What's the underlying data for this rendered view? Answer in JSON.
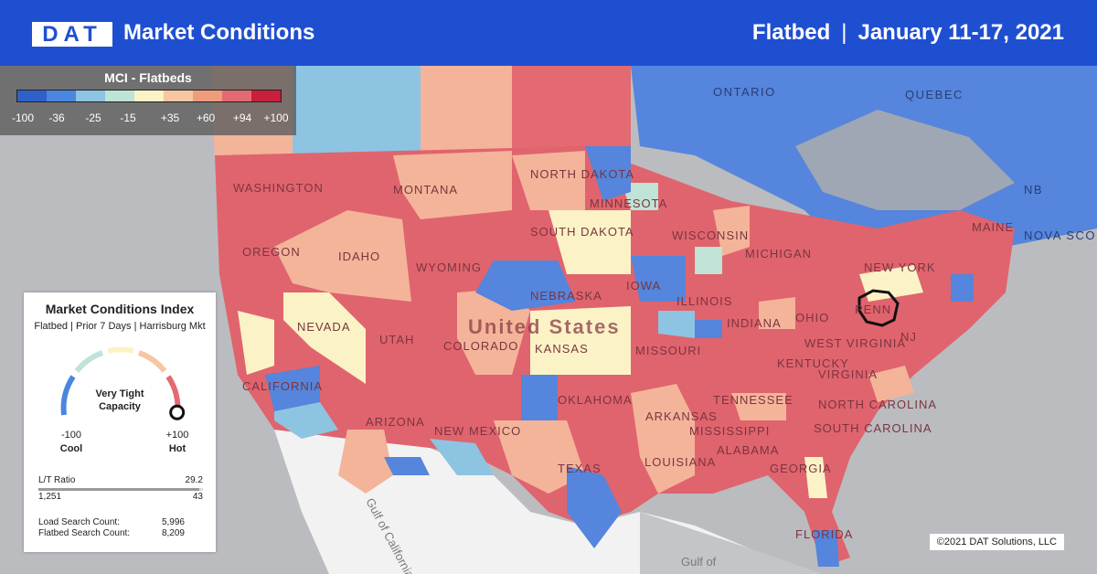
{
  "header": {
    "logo": "DAT",
    "title": "Market Conditions",
    "segment": "Flatbed",
    "separator": "|",
    "date_range": "January 11-17, 2021"
  },
  "legend": {
    "title": "MCI - Flatbeds",
    "colors": [
      "#2f5fc9",
      "#4a86dd",
      "#8dc4e2",
      "#bfe3d7",
      "#fbf3c6",
      "#f6c7a2",
      "#ee9b7e",
      "#e26a70",
      "#c71f3c"
    ],
    "ticks": [
      "-100",
      "-36",
      "-25",
      "-15",
      "+35",
      "+60",
      "+94",
      "+100"
    ]
  },
  "map_labels": {
    "country": "United States",
    "states": [
      "WASHINGTON",
      "OREGON",
      "IDAHO",
      "MONTANA",
      "NORTH DAKOTA",
      "SOUTH DAKOTA",
      "WYOMING",
      "NEVADA",
      "UTAH",
      "COLORADO",
      "NEBRASKA",
      "KANSAS",
      "CALIFORNIA",
      "ARIZONA",
      "NEW MEXICO",
      "OKLAHOMA",
      "TEXAS",
      "MINNESOTA",
      "IOWA",
      "WISCONSIN",
      "MICHIGAN",
      "ILLINOIS",
      "INDIANA",
      "MISSOURI",
      "ARKANSAS",
      "LOUISIANA",
      "MISSISSIPPI",
      "ALABAMA",
      "GEORGIA",
      "FLORIDA",
      "TENNESSEE",
      "KENTUCKY",
      "OHIO",
      "WEST VIRGINIA",
      "VIRGINIA",
      "NORTH CAROLINA",
      "SOUTH CAROLINA",
      "PENN",
      "NEW YORK",
      "NJ",
      "MAINE"
    ],
    "canada": [
      "ONTARIO",
      "QUEBEC",
      "NB",
      "NOVA SCO"
    ],
    "water": [
      "Gulf of California",
      "Gulf of"
    ]
  },
  "panel": {
    "title": "Market Conditions Index",
    "subtitle": "Flatbed | Prior 7 Days | Harrisburg Mkt",
    "status_line1": "Very Tight",
    "status_line2": "Capacity",
    "min_value": "-100",
    "min_label": "Cool",
    "max_value": "+100",
    "max_label": "Hot",
    "ratio_label": "L/T Ratio",
    "ratio_value": "29.2",
    "loads": "1,251",
    "trucks": "43",
    "load_search_label": "Load Search Count:",
    "load_search_value": "5,996",
    "flatbed_search_label": "Flatbed Search Count:",
    "flatbed_search_value": "8,209",
    "gauge_level": 0.97
  },
  "copyright": "©2021 DAT Solutions, LLC"
}
